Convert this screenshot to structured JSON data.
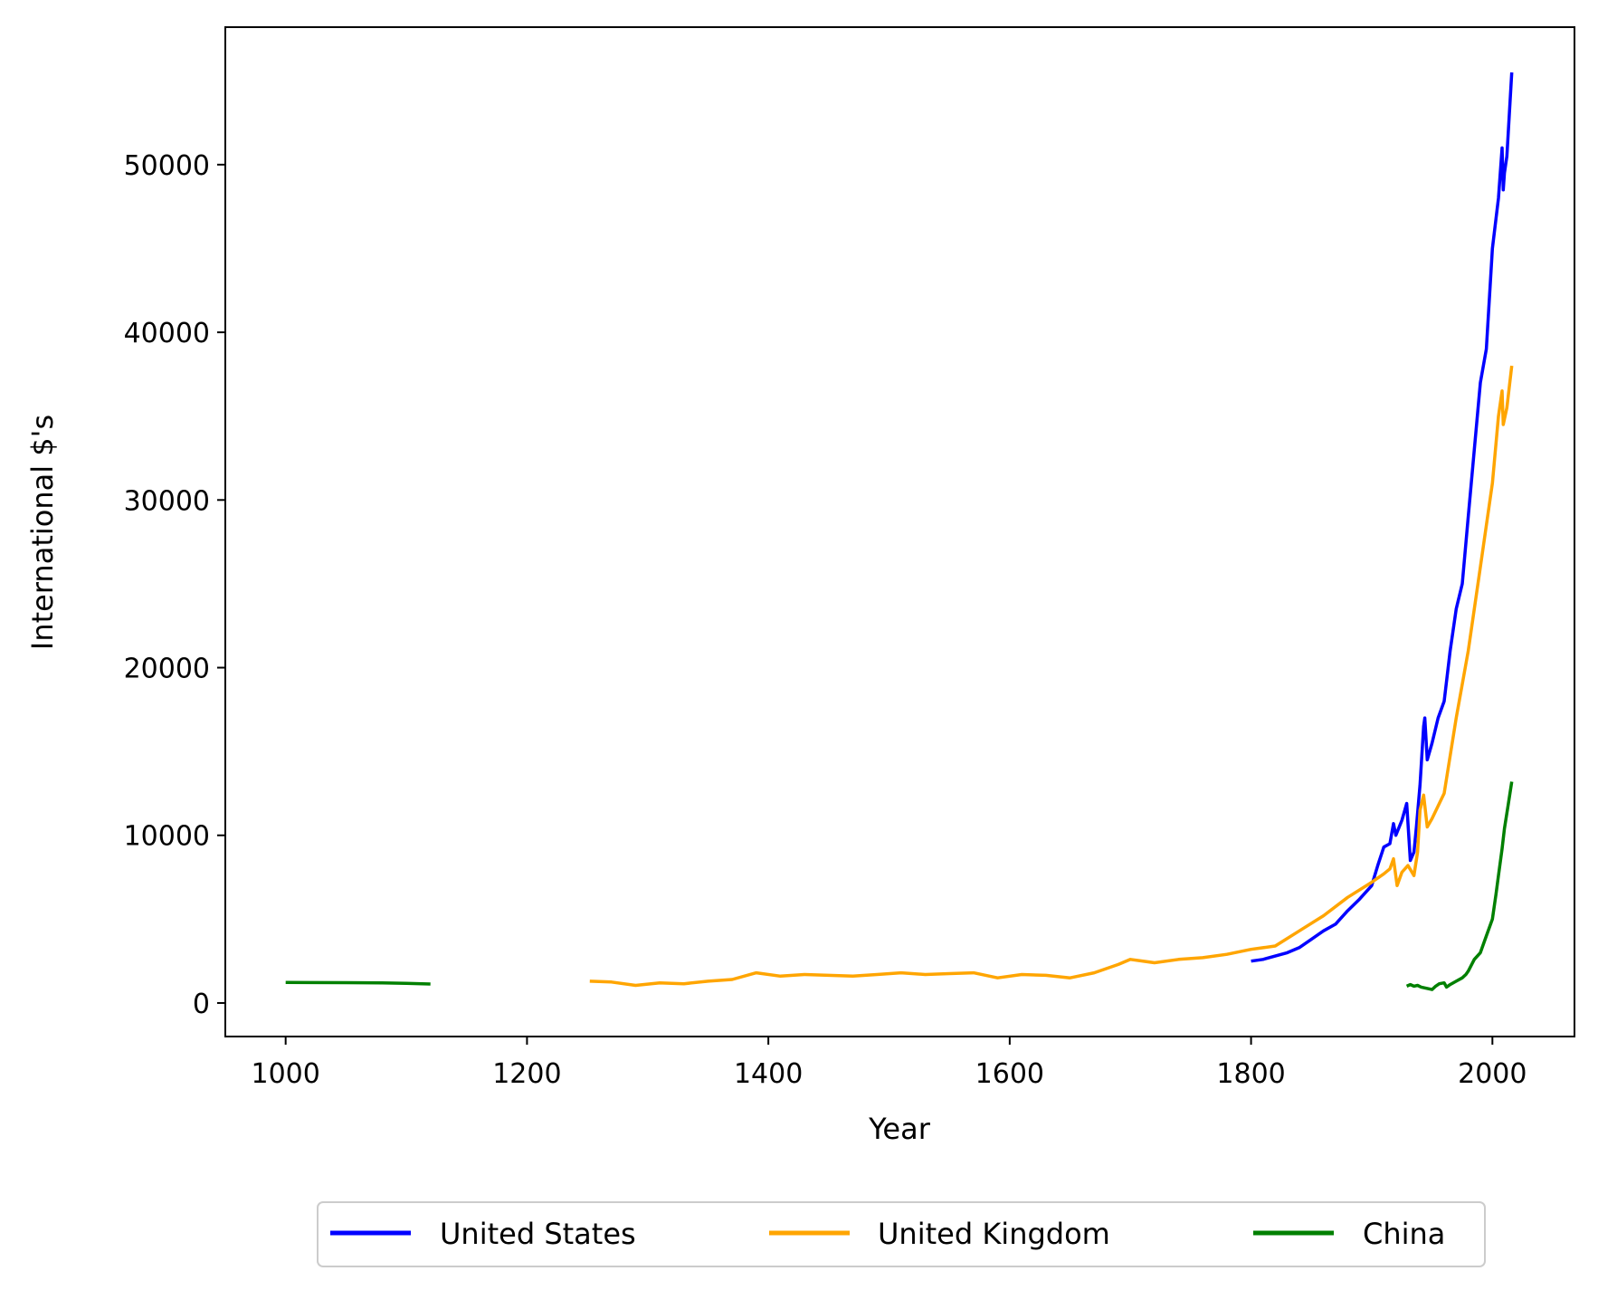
{
  "chart_data": {
    "type": "line",
    "title": "",
    "xlabel": "Year",
    "ylabel": "International $'s",
    "xlim": [
      950,
      2068
    ],
    "ylim": [
      -2000,
      58200
    ],
    "xticks": [
      1000,
      1200,
      1400,
      1600,
      1800,
      2000
    ],
    "yticks": [
      0,
      10000,
      20000,
      30000,
      40000,
      50000
    ],
    "grid": false,
    "legend_position": "bottom-center",
    "series": [
      {
        "name": "United States",
        "color": "#0000ff",
        "x": [
          1800,
          1810,
          1820,
          1830,
          1840,
          1850,
          1860,
          1870,
          1880,
          1890,
          1900,
          1905,
          1910,
          1915,
          1918,
          1920,
          1925,
          1929,
          1932,
          1935,
          1937,
          1940,
          1943,
          1944,
          1946,
          1950,
          1955,
          1960,
          1965,
          1970,
          1975,
          1980,
          1985,
          1990,
          1995,
          2000,
          2005,
          2008,
          2009,
          2010,
          2012,
          2016
        ],
        "y": [
          2500,
          2600,
          2800,
          3000,
          3300,
          3800,
          4300,
          4700,
          5500,
          6200,
          7000,
          8200,
          9300,
          9500,
          10700,
          10000,
          10900,
          11900,
          8500,
          9000,
          10500,
          13000,
          16500,
          17000,
          14500,
          15500,
          17000,
          18000,
          21000,
          23500,
          25000,
          29000,
          33000,
          37000,
          39000,
          45000,
          48000,
          51000,
          48500,
          49500,
          50500,
          55500
        ]
      },
      {
        "name": "United Kingdom",
        "color": "#ffa500",
        "x": [
          1252,
          1270,
          1290,
          1310,
          1330,
          1350,
          1370,
          1390,
          1410,
          1430,
          1450,
          1470,
          1490,
          1510,
          1530,
          1550,
          1570,
          1590,
          1610,
          1630,
          1650,
          1670,
          1690,
          1700,
          1720,
          1740,
          1760,
          1780,
          1800,
          1820,
          1840,
          1860,
          1880,
          1900,
          1910,
          1915,
          1918,
          1921,
          1925,
          1930,
          1935,
          1938,
          1940,
          1943,
          1946,
          1950,
          1960,
          1970,
          1980,
          1990,
          2000,
          2005,
          2008,
          2009,
          2012,
          2016
        ],
        "y": [
          1300,
          1250,
          1050,
          1200,
          1150,
          1300,
          1400,
          1800,
          1600,
          1700,
          1650,
          1600,
          1700,
          1800,
          1700,
          1750,
          1800,
          1500,
          1700,
          1650,
          1500,
          1800,
          2300,
          2600,
          2400,
          2600,
          2700,
          2900,
          3200,
          3400,
          4300,
          5200,
          6300,
          7200,
          7700,
          8000,
          8600,
          7000,
          7800,
          8200,
          7600,
          9000,
          11500,
          12400,
          10500,
          11000,
          12500,
          17000,
          21000,
          26000,
          31000,
          35000,
          36500,
          34500,
          35500,
          38000
        ]
      },
      {
        "name": "China",
        "color": "#008000",
        "x": [
          1000,
          1020,
          1050,
          1080,
          1100,
          1120
        ],
        "y": [
          1225,
          1220,
          1210,
          1200,
          1170,
          1130
        ],
        "x2": [
          1929,
          1932,
          1935,
          1938,
          1941,
          1944,
          1947,
          1950,
          1953,
          1956,
          1960,
          1962,
          1965,
          1970,
          1975,
          1978,
          1980,
          1985,
          1990,
          1995,
          2000,
          2003,
          2005,
          2008,
          2010,
          2013,
          2016
        ],
        "y2": [
          1000,
          1100,
          1000,
          1050,
          950,
          900,
          850,
          800,
          1000,
          1150,
          1200,
          950,
          1100,
          1300,
          1500,
          1700,
          1900,
          2600,
          3000,
          4000,
          5000,
          6500,
          7600,
          9200,
          10400,
          11800,
          13200
        ]
      }
    ]
  }
}
